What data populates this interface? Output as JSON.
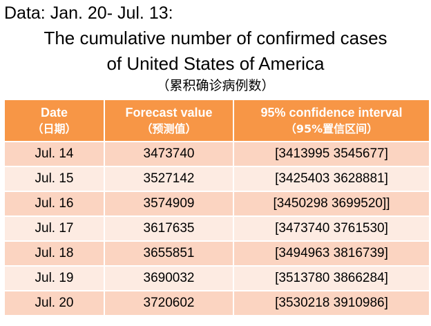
{
  "header": {
    "data_range": "Data: Jan. 20- Jul. 13:",
    "title_line1": "The cumulative number of confirmed cases",
    "title_line2": "of  United States of America",
    "subtitle": "（累积确诊病例数）"
  },
  "table": {
    "columns": [
      {
        "en": "Date",
        "zh": "（日期）"
      },
      {
        "en": "Forecast value",
        "zh": "（预测值）"
      },
      {
        "en": "95% confidence interval",
        "zh": "（95%置信区间）"
      }
    ],
    "rows": [
      {
        "date": "Jul. 14",
        "forecast": "3473740",
        "interval": "[3413995 3545677]"
      },
      {
        "date": "Jul. 15",
        "forecast": "3527142",
        "interval": "[3425403 3628881]"
      },
      {
        "date": "Jul. 16",
        "forecast": "3574909",
        "interval": "[3450298 3699520]]"
      },
      {
        "date": "Jul. 17",
        "forecast": "3617635",
        "interval": "[3473740 3761530]"
      },
      {
        "date": "Jul. 18",
        "forecast": "3655851",
        "interval": "[3494963 3816739]"
      },
      {
        "date": "Jul. 19",
        "forecast": "3690032",
        "interval": "[3513780 3866284]"
      },
      {
        "date": "Jul. 20",
        "forecast": "3720602",
        "interval": "[3530218 3910986]"
      }
    ]
  },
  "colors": {
    "header_bg": "#f79646",
    "row_odd_bg": "#fbd4c1",
    "row_even_bg": "#fdebe2"
  }
}
